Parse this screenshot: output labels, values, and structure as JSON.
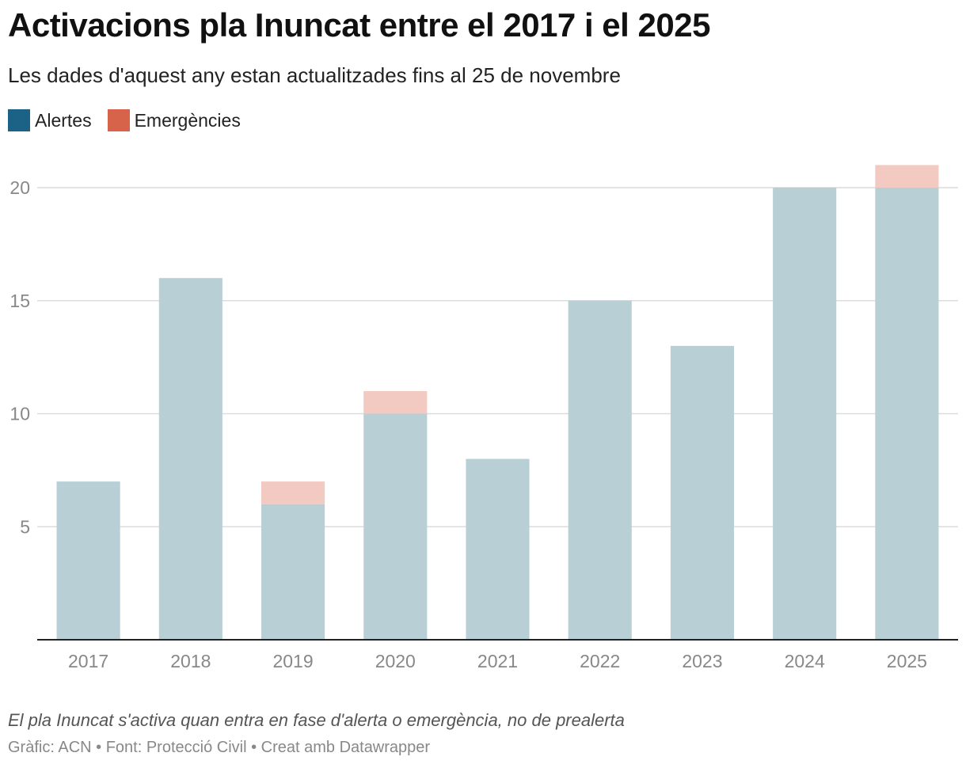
{
  "header": {
    "title": "Activacions pla Inuncat entre el 2017 i el 2025",
    "subtitle": "Les dades d'aquest any estan actualitzades fins al 25 de novembre"
  },
  "legend": {
    "items": [
      {
        "label": "Alertes",
        "color": "#1b6286"
      },
      {
        "label": "Emergències",
        "color": "#d6634a"
      }
    ]
  },
  "chart_data": {
    "type": "bar",
    "stacked": true,
    "categories": [
      "2017",
      "2018",
      "2019",
      "2020",
      "2021",
      "2022",
      "2023",
      "2024",
      "2025"
    ],
    "series": [
      {
        "name": "Alertes",
        "values": [
          7,
          16,
          6,
          10,
          8,
          15,
          13,
          20,
          20
        ],
        "color": "#1b6286",
        "bar_color": "#b8cfd6"
      },
      {
        "name": "Emergències",
        "values": [
          0,
          0,
          1,
          1,
          0,
          0,
          0,
          0,
          1
        ],
        "color": "#d6634a",
        "bar_color": "#f2cac2"
      }
    ],
    "yticks": [
      5,
      10,
      15,
      20
    ],
    "ylim": [
      0,
      20
    ],
    "grid": true,
    "legend_position": "top-left"
  },
  "footer": {
    "note": "El pla Inuncat s'activa quan entra en fase d'alerta o emergència, no de prealerta",
    "credits": "Gràfic: ACN • Font: Protecció Civil • Creat amb Datawrapper"
  }
}
